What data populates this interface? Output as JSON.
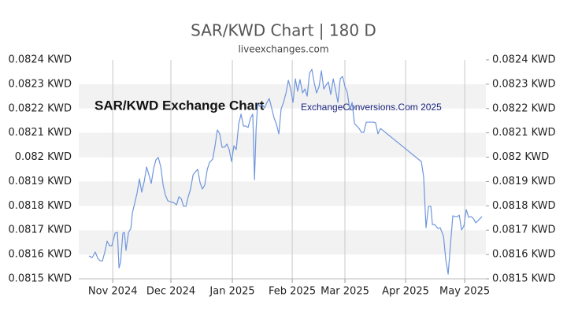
{
  "chart_data": {
    "type": "line",
    "title": "SAR/KWD Chart | 180 D",
    "subtitle": "liveexchanges.com",
    "annotations": [
      "SAR/KWD Exchange Chart",
      "ExchangeConversions.Com 2025"
    ],
    "x": [
      0,
      1.6,
      3.2,
      4.5,
      5.7,
      6.9,
      8.1,
      9.3,
      10.5,
      11.7,
      13.4,
      14.6,
      15.4,
      16.2,
      17.4,
      18.2,
      19.0,
      20.3,
      21.5,
      22.3,
      23.1,
      24.7,
      25.9,
      27.1,
      28.4,
      29.6,
      30.8,
      32.0,
      33.2,
      34.4,
      35.6,
      36.9,
      38.1,
      39.3,
      40.5,
      41.7,
      43.3,
      45.0,
      46.2,
      47.4,
      48.6,
      49.8,
      51.0,
      52.2,
      53.5,
      54.7,
      55.9,
      57.1,
      58.3,
      59.5,
      60.8,
      62.0,
      63.6,
      64.8,
      66.0,
      67.2,
      68.4,
      69.7,
      70.9,
      72.1,
      73.3,
      74.5,
      75.7,
      77.0,
      78.2,
      79.4,
      80.6,
      81.8,
      83.0,
      84.2,
      85.1,
      85.9,
      86.7,
      87.9,
      89.1,
      90.3,
      91.5,
      92.7,
      94.0,
      95.2,
      96.4,
      97.6,
      98.8,
      100.0,
      101.3,
      102.5,
      103.7,
      104.9,
      106.1,
      107.3,
      108.5,
      109.8,
      111.0,
      112.2,
      113.4,
      114.6,
      115.8,
      117.0,
      118.3,
      119.5,
      120.7,
      121.9,
      123.1,
      124.3,
      125.6,
      126.8,
      128.0,
      129.2,
      130.4,
      131.6,
      132.8,
      134.1,
      135.3,
      136.5,
      137.7,
      138.9,
      140.1,
      141.3,
      142.6,
      143.8,
      145.0,
      146.2,
      147.4,
      148.6,
      149.9,
      170.9,
      172.1,
      173.3,
      174.6,
      175.8,
      176.6,
      177.8,
      179.4,
      180.6,
      182.3,
      183.5,
      184.7,
      185.9,
      187.1,
      188.3,
      189.5,
      190.4,
      191.6,
      192.8,
      194.0,
      195.2,
      196.4,
      197.6,
      198.9,
      202.1
    ],
    "series": [
      {
        "color": "#7096dc",
        "values": [
          0.081594,
          0.081587,
          0.08161,
          0.081584,
          0.081574,
          0.081574,
          0.08161,
          0.081655,
          0.081636,
          0.081636,
          0.081688,
          0.081691,
          0.081545,
          0.081568,
          0.081688,
          0.081691,
          0.081617,
          0.081691,
          0.081707,
          0.081772,
          0.081798,
          0.081853,
          0.081911,
          0.081856,
          0.081901,
          0.08196,
          0.081927,
          0.081892,
          0.081953,
          0.081989,
          0.081999,
          0.08196,
          0.081885,
          0.081843,
          0.081821,
          0.081817,
          0.081814,
          0.081804,
          0.081837,
          0.08183,
          0.081798,
          0.081798,
          0.081837,
          0.081869,
          0.081927,
          0.08194,
          0.08195,
          0.081895,
          0.081869,
          0.081885,
          0.08195,
          0.081979,
          0.081992,
          0.082047,
          0.082112,
          0.082096,
          0.082041,
          0.082041,
          0.082054,
          0.082031,
          0.081982,
          0.082047,
          0.082031,
          0.082138,
          0.082177,
          0.082128,
          0.082128,
          0.082122,
          0.08216,
          0.082177,
          0.081908,
          0.082112,
          0.082219,
          0.082209,
          0.082215,
          0.082203,
          0.082225,
          0.082241,
          0.082199,
          0.08216,
          0.082135,
          0.082096,
          0.082199,
          0.082225,
          0.082264,
          0.082316,
          0.08228,
          0.082225,
          0.082322,
          0.082271,
          0.082319,
          0.082264,
          0.08228,
          0.082251,
          0.082345,
          0.082361,
          0.082306,
          0.082264,
          0.08229,
          0.082355,
          0.08228,
          0.082296,
          0.082309,
          0.082258,
          0.082322,
          0.082274,
          0.082225,
          0.082322,
          0.082332,
          0.08229,
          0.082267,
          0.082193,
          0.082225,
          0.082138,
          0.082128,
          0.082118,
          0.082102,
          0.082102,
          0.082144,
          0.082144,
          0.082144,
          0.082144,
          0.082141,
          0.082096,
          0.082118,
          0.081982,
          0.081918,
          0.08171,
          0.081798,
          0.081798,
          0.081723,
          0.081723,
          0.081707,
          0.08171,
          0.081675,
          0.081578,
          0.081519,
          0.081642,
          0.081759,
          0.081756,
          0.081756,
          0.081762,
          0.081701,
          0.081717,
          0.081785,
          0.081753,
          0.081756,
          0.081749,
          0.08173,
          0.081756
        ]
      }
    ],
    "xlim": [
      -5.3,
      204.1
    ],
    "xticks": [
      {
        "value": 12.2,
        "label": "Nov 2024"
      },
      {
        "value": 42.1,
        "label": "Dec 2024"
      },
      {
        "value": 73.7,
        "label": "Jan 2025"
      },
      {
        "value": 104.5,
        "label": "Feb 2025"
      },
      {
        "value": 131.6,
        "label": "Mar 2025"
      },
      {
        "value": 162.8,
        "label": "Apr 2025"
      },
      {
        "value": 193.2,
        "label": "May 2025"
      }
    ],
    "ylim": [
      0.0815,
      0.0824
    ],
    "yticks": [
      {
        "value": 0.0824,
        "label": "0.0824 KWD"
      },
      {
        "value": 0.0823,
        "label": "0.0823 KWD"
      },
      {
        "value": 0.0822,
        "label": "0.0822 KWD"
      },
      {
        "value": 0.0821,
        "label": "0.0821 KWD"
      },
      {
        "value": 0.082,
        "label": "0.082 KWD"
      },
      {
        "value": 0.0819,
        "label": "0.0819 KWD"
      },
      {
        "value": 0.0818,
        "label": "0.0818 KWD"
      },
      {
        "value": 0.0817,
        "label": "0.0817 KWD"
      },
      {
        "value": 0.0816,
        "label": "0.0816 KWD"
      },
      {
        "value": 0.0815,
        "label": "0.0815 KWD"
      }
    ],
    "y_labels_both_sides": true,
    "grid_bands": true,
    "grid": true
  }
}
